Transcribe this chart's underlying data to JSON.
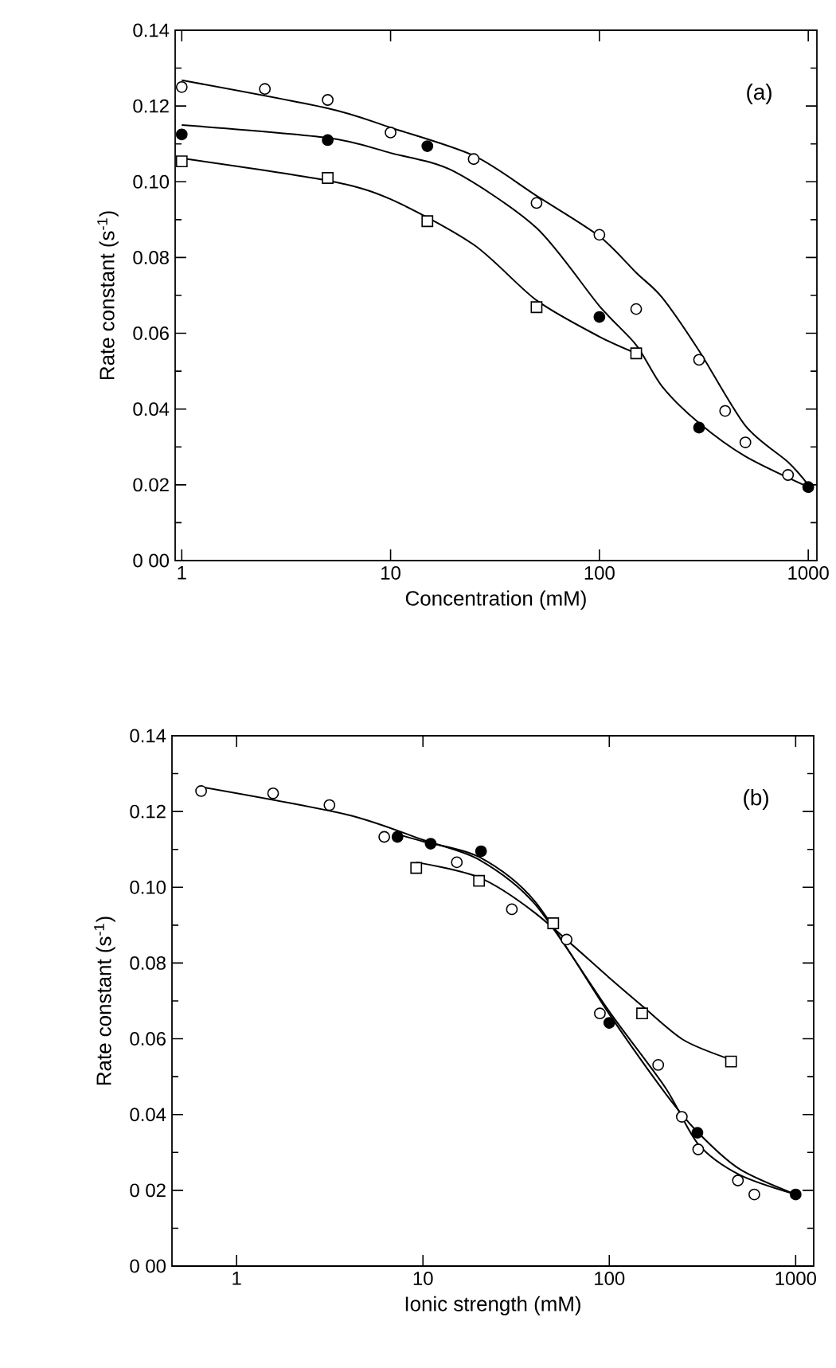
{
  "chart_data": [
    {
      "type": "scatter",
      "xlabel": "Concentration (mM)",
      "ylabel": "Rate constant (s$^{-1}$)",
      "annotations": [
        "(a)"
      ],
      "log": "x",
      "xlim": [
        0.93,
        1100
      ],
      "ylim": [
        0,
        0.14
      ],
      "xticks": [
        1,
        10,
        100,
        1000
      ],
      "yticks": [
        {
          "value": 0,
          "label": "0 00"
        },
        0.02,
        0.04,
        0.06,
        0.08,
        {
          "value": 0.1,
          "label": "0.10"
        },
        0.12,
        0.14
      ],
      "grid": false,
      "series": [
        {
          "marker": "circle",
          "color": "#ffffff",
          "x": [
            1,
            2.5,
            5,
            10,
            25,
            50,
            100,
            150,
            300,
            400,
            500,
            800
          ],
          "values": [
            0.125,
            0.1245,
            0.1216,
            0.113,
            0.106,
            0.0944,
            0.086,
            0.0664,
            0.053,
            0.0395,
            0.0312,
            0.0226
          ]
        },
        {
          "marker": "circle",
          "color": "#000000",
          "x": [
            1,
            5,
            15,
            100,
            300,
            1000
          ],
          "values": [
            0.1125,
            0.111,
            0.1094,
            0.0643,
            0.0351,
            0.0194
          ]
        },
        {
          "marker": "square",
          "color": "#ffffff",
          "x": [
            1,
            5,
            15,
            50,
            150
          ],
          "values": [
            0.1054,
            0.101,
            0.0896,
            0.0669,
            0.0547
          ]
        },
        {
          "type": "line",
          "marker": "none",
          "color": "#000000",
          "x": [
            1,
            5,
            10,
            25,
            50,
            100,
            150,
            200,
            300,
            500,
            800,
            1000
          ],
          "values": [
            0.1268,
            0.1194,
            0.1143,
            0.1069,
            0.0963,
            0.0856,
            0.076,
            0.0694,
            0.0554,
            0.0356,
            0.026,
            0.02
          ]
        },
        {
          "type": "line",
          "marker": "none",
          "color": "#000000",
          "x": [
            1,
            5,
            10,
            20,
            50,
            100,
            150,
            200,
            300,
            500,
            1000
          ],
          "values": [
            0.115,
            0.1116,
            0.1076,
            0.1028,
            0.0878,
            0.0672,
            0.0569,
            0.0459,
            0.0363,
            0.0275,
            0.0194
          ]
        },
        {
          "type": "line",
          "marker": "none",
          "color": "#000000",
          "x": [
            1,
            5,
            10,
            25,
            50,
            100,
            150
          ],
          "values": [
            0.1062,
            0.1003,
            0.0954,
            0.0834,
            0.0687,
            0.0591,
            0.0547
          ]
        }
      ]
    },
    {
      "type": "scatter",
      "xlabel": "Ionic strength (mM)",
      "ylabel": "Rate constant (s$^{-1}$)",
      "annotations": [
        "(b)"
      ],
      "log": "x",
      "xlim": [
        0.45,
        1250
      ],
      "ylim": [
        0,
        0.14
      ],
      "xticks": [
        1,
        10,
        100,
        1000
      ],
      "yticks": [
        {
          "value": 0,
          "label": "0 00"
        },
        {
          "value": 0.02,
          "label": "0 02"
        },
        0.04,
        0.06,
        0.08,
        {
          "value": 0.1,
          "label": "0.10"
        },
        0.12,
        0.14
      ],
      "grid": false,
      "series": [
        {
          "marker": "circle",
          "color": "#ffffff",
          "x": [
            0.645,
            1.57,
            3.15,
            6.2,
            15.2,
            30,
            59,
            89,
            183,
            245,
            300,
            490,
            600
          ],
          "values": [
            0.1254,
            0.1248,
            0.1217,
            0.1133,
            0.1066,
            0.0942,
            0.0862,
            0.0667,
            0.0531,
            0.0394,
            0.0308,
            0.0226,
            0.0189
          ]
        },
        {
          "marker": "circle",
          "color": "#000000",
          "x": [
            7.3,
            11,
            20.5,
            100,
            297,
            1000
          ],
          "values": [
            0.1133,
            0.1115,
            0.1095,
            0.0642,
            0.0352,
            0.0189
          ]
        },
        {
          "marker": "square",
          "color": "#ffffff",
          "x": [
            9.2,
            20,
            50,
            150,
            450
          ],
          "values": [
            0.1051,
            0.1017,
            0.0905,
            0.0667,
            0.054
          ]
        },
        {
          "type": "line",
          "marker": "none",
          "color": "#000000",
          "x": [
            0.645,
            3.9,
            10,
            20,
            40,
            100,
            200,
            300,
            500,
            1000
          ],
          "values": [
            0.1265,
            0.1192,
            0.1125,
            0.1073,
            0.0955,
            0.0672,
            0.0471,
            0.0322,
            0.0241,
            0.0189
          ]
        },
        {
          "type": "line",
          "marker": "none",
          "color": "#000000",
          "x": [
            7.3,
            10,
            20,
            40,
            100,
            200,
            300,
            500,
            1000
          ],
          "values": [
            0.114,
            0.1121,
            0.108,
            0.0962,
            0.0665,
            0.0456,
            0.0352,
            0.0256,
            0.0189
          ]
        },
        {
          "type": "line",
          "marker": "none",
          "color": "#000000",
          "x": [
            9.2,
            20,
            40,
            100,
            150,
            250,
            450
          ],
          "values": [
            0.1066,
            0.1026,
            0.0932,
            0.0761,
            0.0687,
            0.0597,
            0.0545
          ]
        }
      ]
    }
  ]
}
